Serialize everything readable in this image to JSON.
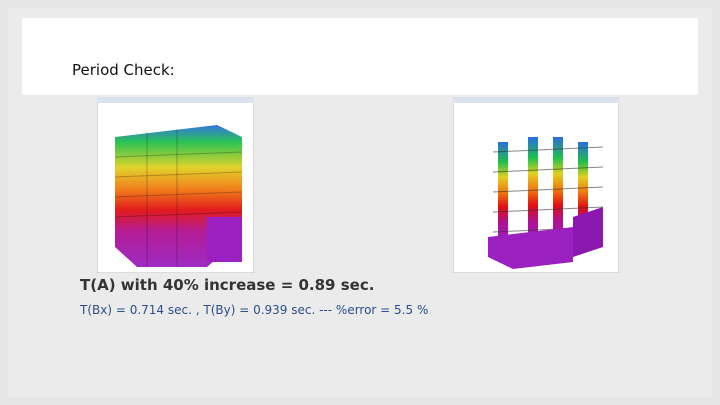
{
  "header": {
    "title": "Period Check:"
  },
  "body": {
    "lines": [
      "T(A) with 40% increase = 0.89 sec.",
      "T(Bx) = 0.714 sec. , T(By) = 0.939 sec. --- %error = 5.5 %"
    ]
  }
}
